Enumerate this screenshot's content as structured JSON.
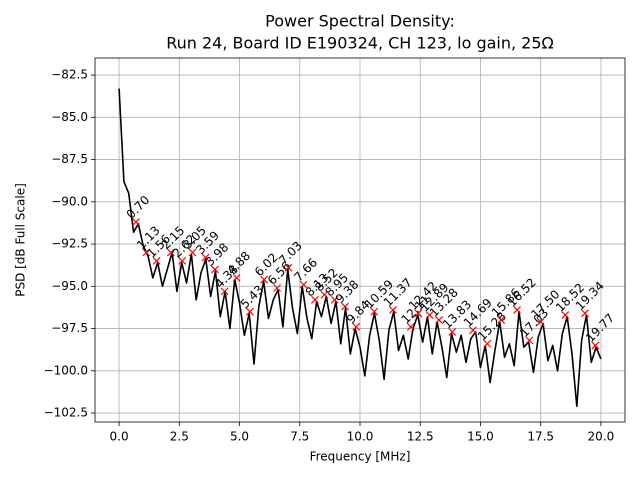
{
  "chart_data": {
    "type": "line",
    "title": [
      "Power Spectral Density:",
      "Run 24, Board ID E190324, CH 123, lo gain, 25Ω"
    ],
    "x_label": "Frequency [MHz]",
    "y_label": "PSD [dB Full Scale]",
    "xlim": [
      -1.0,
      21.0
    ],
    "ylim": [
      -103.03,
      -81.49
    ],
    "xticks": [
      {
        "value": 0,
        "label": "0.0"
      },
      2.5,
      {
        "value": 5,
        "label": "5.0"
      },
      7.5,
      {
        "value": 10,
        "label": "10.0"
      },
      12.5,
      {
        "value": 15,
        "label": "15.0"
      },
      17.5,
      {
        "value": 20,
        "label": "20.0"
      }
    ],
    "yticks": [
      {
        "value": -102.5,
        "label": "−102.5"
      },
      {
        "value": -100,
        "label": "−100.0"
      },
      {
        "value": -97.5,
        "label": "−97.5"
      },
      {
        "value": -95,
        "label": "−95.0"
      },
      {
        "value": -92.5,
        "label": "−92.5"
      },
      {
        "value": -90,
        "label": "−90.0"
      },
      {
        "value": -87.5,
        "label": "−87.5"
      },
      {
        "value": -85,
        "label": "−85.0"
      },
      {
        "value": -82.5,
        "label": "−82.5"
      }
    ],
    "grid": true,
    "series": [
      {
        "color": "#000000",
        "marker": "none",
        "x": [
          0,
          0.2,
          0.4,
          0.6,
          0.8,
          1,
          1.2,
          1.4,
          1.6,
          1.8,
          2,
          2.2,
          2.4,
          2.6,
          2.8,
          3,
          3.2,
          3.4,
          3.6,
          3.8,
          4,
          4.2,
          4.4,
          4.6,
          4.8,
          5,
          5.2,
          5.4,
          5.6,
          5.8,
          6,
          6.2,
          6.4,
          6.6,
          6.8,
          7,
          7.2,
          7.4,
          7.6,
          7.8,
          8,
          8.2,
          8.4,
          8.6,
          8.8,
          9,
          9.2,
          9.4,
          9.6,
          9.8,
          10,
          10.2,
          10.4,
          10.6,
          10.8,
          11,
          11.2,
          11.4,
          11.6,
          11.8,
          12,
          12.2,
          12.4,
          12.6,
          12.8,
          13,
          13.2,
          13.4,
          13.6,
          13.8,
          14,
          14.2,
          14.4,
          14.6,
          14.8,
          15,
          15.2,
          15.4,
          15.6,
          15.8,
          16,
          16.2,
          16.4,
          16.6,
          16.8,
          17,
          17.2,
          17.4,
          17.6,
          17.8,
          18,
          18.2,
          18.4,
          18.6,
          18.8,
          19,
          19.2,
          19.4,
          19.6,
          19.8,
          20
        ],
        "values": [
          -83.3,
          -88.8,
          -89.5,
          -91.8,
          -91.3,
          -92.6,
          -93.2,
          -94.5,
          -93.6,
          -95.0,
          -94.0,
          -93.0,
          -95.3,
          -93.6,
          -94.8,
          -93.1,
          -95.8,
          -94.2,
          -93.4,
          -95.6,
          -94.1,
          -96.8,
          -95.3,
          -97.5,
          -94.6,
          -96.0,
          -97.9,
          -96.6,
          -99.6,
          -96.2,
          -94.7,
          -96.9,
          -95.8,
          -95.2,
          -97.4,
          -94.0,
          -96.3,
          -97.8,
          -95.0,
          -96.9,
          -98.1,
          -95.9,
          -96.8,
          -95.6,
          -97.2,
          -95.9,
          -98.4,
          -96.3,
          -99.0,
          -97.5,
          -98.6,
          -100.3,
          -97.9,
          -96.6,
          -98.2,
          -100.5,
          -97.6,
          -96.5,
          -98.8,
          -97.9,
          -99.3,
          -97.5,
          -96.7,
          -98.3,
          -96.8,
          -99.0,
          -97.1,
          -98.6,
          -100.4,
          -97.8,
          -98.9,
          -97.9,
          -99.5,
          -98.1,
          -97.7,
          -99.8,
          -98.5,
          -100.7,
          -98.8,
          -97.1,
          -99.2,
          -98.4,
          -99.7,
          -96.5,
          -98.6,
          -98.3,
          -100.1,
          -98.0,
          -97.2,
          -99.4,
          -98.5,
          -100.0,
          -97.8,
          -96.8,
          -99.0,
          -102.1,
          -98.2,
          -96.7,
          -99.5,
          -98.6,
          -99.3
        ]
      },
      {
        "color": "#ff0000",
        "marker": "x",
        "x": [
          0.7,
          1.13,
          1.56,
          2.15,
          2.62,
          3.05,
          3.59,
          3.98,
          4.38,
          4.88,
          5.43,
          6.02,
          6.56,
          7.03,
          7.66,
          8.13,
          8.52,
          8.95,
          9.38,
          9.84,
          10.59,
          11.37,
          12.11,
          12.42,
          12.89,
          13.28,
          13.83,
          14.69,
          15.28,
          15.86,
          16.52,
          17.03,
          17.5,
          18.52,
          19.34,
          19.77
        ],
        "labels": [
          "0.70",
          "1.13",
          "1.56",
          "2.15",
          "2.62",
          "3.05",
          "3.59",
          "3.98",
          "4.38",
          "4.88",
          "5.43",
          "6.02",
          "6.56",
          "7.03",
          "7.66",
          "8.13",
          "8.52",
          "8.95",
          "9.38",
          "9.84",
          "10.59",
          "11.37",
          "12.11",
          "12.42",
          "12.89",
          "13.28",
          "13.83",
          "14.69",
          "15.28",
          "15.86",
          "16.52",
          "17.03",
          "17.50",
          "18.52",
          "19.34",
          "19.77"
        ],
        "values": [
          -91.2,
          -93.0,
          -93.5,
          -93.0,
          -93.5,
          -93.0,
          -93.3,
          -94.0,
          -95.3,
          -94.5,
          -96.5,
          -94.6,
          -95.1,
          -93.9,
          -94.9,
          -95.8,
          -95.5,
          -95.8,
          -96.2,
          -97.4,
          -96.5,
          -96.4,
          -97.4,
          -96.6,
          -96.7,
          -97.0,
          -97.7,
          -97.6,
          -98.4,
          -97.0,
          -96.4,
          -98.2,
          -97.1,
          -96.7,
          -96.6,
          -98.5
        ]
      }
    ]
  }
}
